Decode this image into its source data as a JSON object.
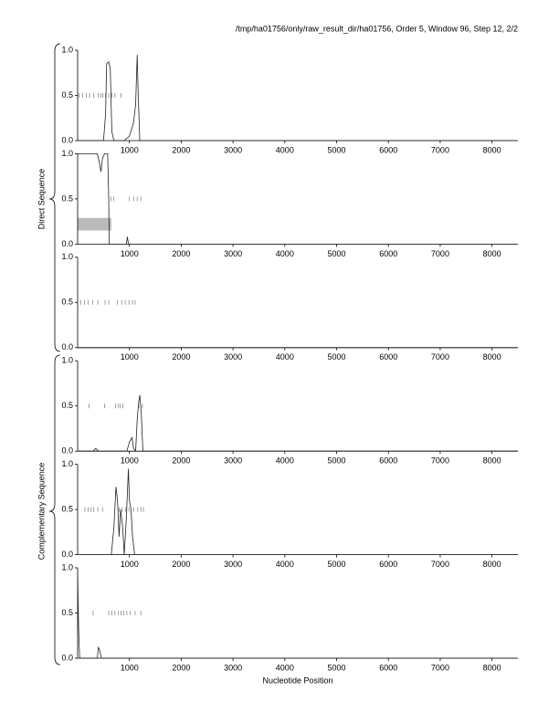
{
  "header": "/tmp/ha01756/only/raw_result_dir/ha01756, Order 5, Window 96, Step 12, 2/2",
  "group_labels": [
    "Direct Sequence",
    "Complementary Sequence"
  ],
  "xlabel": "Nucleotide Position",
  "chart_data": [
    {
      "type": "line",
      "xlim": [
        0,
        8500
      ],
      "xticks": [
        1000,
        2000,
        3000,
        4000,
        5000,
        6000,
        7000,
        8000
      ],
      "ylim": [
        0,
        1
      ],
      "yticks": [
        {
          "value": 0,
          "label": "0.0"
        },
        0.5,
        {
          "value": 1,
          "label": "1.0"
        }
      ],
      "line": {
        "x": [
          0,
          500,
          540,
          560,
          600,
          630,
          660,
          700,
          900,
          1000,
          1080,
          1120,
          1150,
          1170,
          1200,
          8500
        ],
        "values": [
          0,
          0,
          0.3,
          0.85,
          0.87,
          0.8,
          0.1,
          0,
          0,
          0.05,
          0.2,
          0.4,
          0.95,
          0.5,
          0,
          0
        ]
      },
      "ticks": {
        "x": [
          30,
          100,
          170,
          230,
          310,
          400,
          450,
          490,
          540,
          600,
          660,
          720,
          840
        ],
        "values": [
          0.5,
          0.5,
          0.5,
          0.5,
          0.5,
          0.5,
          0.5,
          0.5,
          0.5,
          0.5,
          0.5,
          0.5,
          0.5
        ]
      }
    },
    {
      "type": "line",
      "xlim": [
        0,
        8500
      ],
      "xticks": [
        1000,
        2000,
        3000,
        4000,
        5000,
        6000,
        7000,
        8000
      ],
      "ylim": [
        0,
        1
      ],
      "yticks": [
        {
          "value": 0,
          "label": "0.0"
        },
        0.5,
        {
          "value": 1,
          "label": "1.0"
        }
      ],
      "line": {
        "x": [
          0,
          380,
          420,
          450,
          480,
          520,
          580,
          600,
          610,
          940,
          960,
          980,
          8500
        ],
        "values": [
          1,
          1,
          0.9,
          0.8,
          0.95,
          1,
          1,
          0.5,
          0,
          0,
          0.08,
          0,
          0
        ]
      },
      "ticks": {
        "x": [
          640,
          700,
          1000,
          1080,
          1150,
          1220
        ],
        "values": [
          0.5,
          0.5,
          0.5,
          0.5,
          0.5,
          0.5
        ]
      },
      "region": {
        "x": [
          0,
          650
        ],
        "y": [
          0.15,
          0.29
        ],
        "color": "#bbbbbb"
      }
    },
    {
      "type": "line",
      "xlim": [
        0,
        8500
      ],
      "xticks": [
        1000,
        2000,
        3000,
        4000,
        5000,
        6000,
        7000,
        8000
      ],
      "ylim": [
        0,
        1
      ],
      "yticks": [
        {
          "value": 0,
          "label": "0.0"
        },
        0.5,
        {
          "value": 1,
          "label": "1.0"
        }
      ],
      "line": {
        "x": [
          0,
          8500
        ],
        "values": [
          0,
          0
        ]
      },
      "ticks": {
        "x": [
          60,
          130,
          200,
          290,
          390,
          530,
          600,
          770,
          850,
          920,
          990,
          1060,
          1110
        ],
        "values": [
          0.5,
          0.5,
          0.5,
          0.5,
          0.5,
          0.5,
          0.5,
          0.5,
          0.5,
          0.5,
          0.5,
          0.5,
          0.5
        ]
      }
    },
    {
      "type": "line",
      "xlim": [
        0,
        8500
      ],
      "xticks": [
        1000,
        2000,
        3000,
        4000,
        5000,
        6000,
        7000,
        8000
      ],
      "ylim": [
        0,
        1
      ],
      "yticks": [
        {
          "value": 0,
          "label": "0.0"
        },
        0.5,
        {
          "value": 1,
          "label": "1.0"
        }
      ],
      "line": {
        "x": [
          0,
          300,
          350,
          400,
          950,
          1000,
          1050,
          1080,
          1120,
          1150,
          1180,
          1200,
          1230,
          1260,
          8500
        ],
        "values": [
          0,
          0,
          0.03,
          0,
          0,
          0.1,
          0.15,
          0.03,
          0,
          0.35,
          0.55,
          0.62,
          0.4,
          0,
          0
        ]
      },
      "ticks": {
        "x": [
          220,
          520,
          730,
          780,
          820,
          870,
          1180,
          1250
        ],
        "values": [
          0.5,
          0.5,
          0.5,
          0.5,
          0.5,
          0.5,
          0.5,
          0.5
        ]
      }
    },
    {
      "type": "line",
      "xlim": [
        0,
        8500
      ],
      "xticks": [
        1000,
        2000,
        3000,
        4000,
        5000,
        6000,
        7000,
        8000
      ],
      "ylim": [
        0,
        1
      ],
      "yticks": [
        {
          "value": 0,
          "label": "0.0"
        },
        0.5,
        {
          "value": 1,
          "label": "1.0"
        }
      ],
      "line": {
        "x": [
          0,
          650,
          700,
          740,
          770,
          800,
          830,
          870,
          900,
          940,
          980,
          1000,
          1030,
          1060,
          1100,
          8500
        ],
        "values": [
          0,
          0,
          0.3,
          0.75,
          0.6,
          0.2,
          0.5,
          0.3,
          0,
          0.4,
          0.95,
          0.6,
          0.5,
          0.2,
          0,
          0
        ]
      },
      "ticks": {
        "x": [
          140,
          200,
          260,
          310,
          390,
          480,
          800,
          860,
          930,
          990,
          1080,
          1160,
          1220,
          1270
        ],
        "values": [
          0.5,
          0.5,
          0.5,
          0.5,
          0.5,
          0.5,
          0.5,
          0.5,
          0.5,
          0.5,
          0.5,
          0.5,
          0.5,
          0.5
        ]
      }
    },
    {
      "type": "line",
      "xlim": [
        0,
        8500
      ],
      "xticks": [
        1000,
        2000,
        3000,
        4000,
        5000,
        6000,
        7000,
        8000
      ],
      "ylim": [
        0,
        1
      ],
      "yticks": [
        {
          "value": 0,
          "label": "0.0"
        },
        0.5,
        {
          "value": 1,
          "label": "1.0"
        }
      ],
      "line": {
        "x": [
          0,
          20,
          40,
          380,
          400,
          420,
          440,
          460,
          8500
        ],
        "values": [
          0.95,
          0.3,
          0,
          0,
          0.12,
          0.1,
          0.05,
          0,
          0
        ]
      },
      "ticks": {
        "x": [
          300,
          600,
          660,
          720,
          790,
          840,
          890,
          950,
          1020,
          1110,
          1220
        ],
        "values": [
          0.5,
          0.5,
          0.5,
          0.5,
          0.5,
          0.5,
          0.5,
          0.5,
          0.5,
          0.5,
          0.5
        ]
      }
    }
  ]
}
